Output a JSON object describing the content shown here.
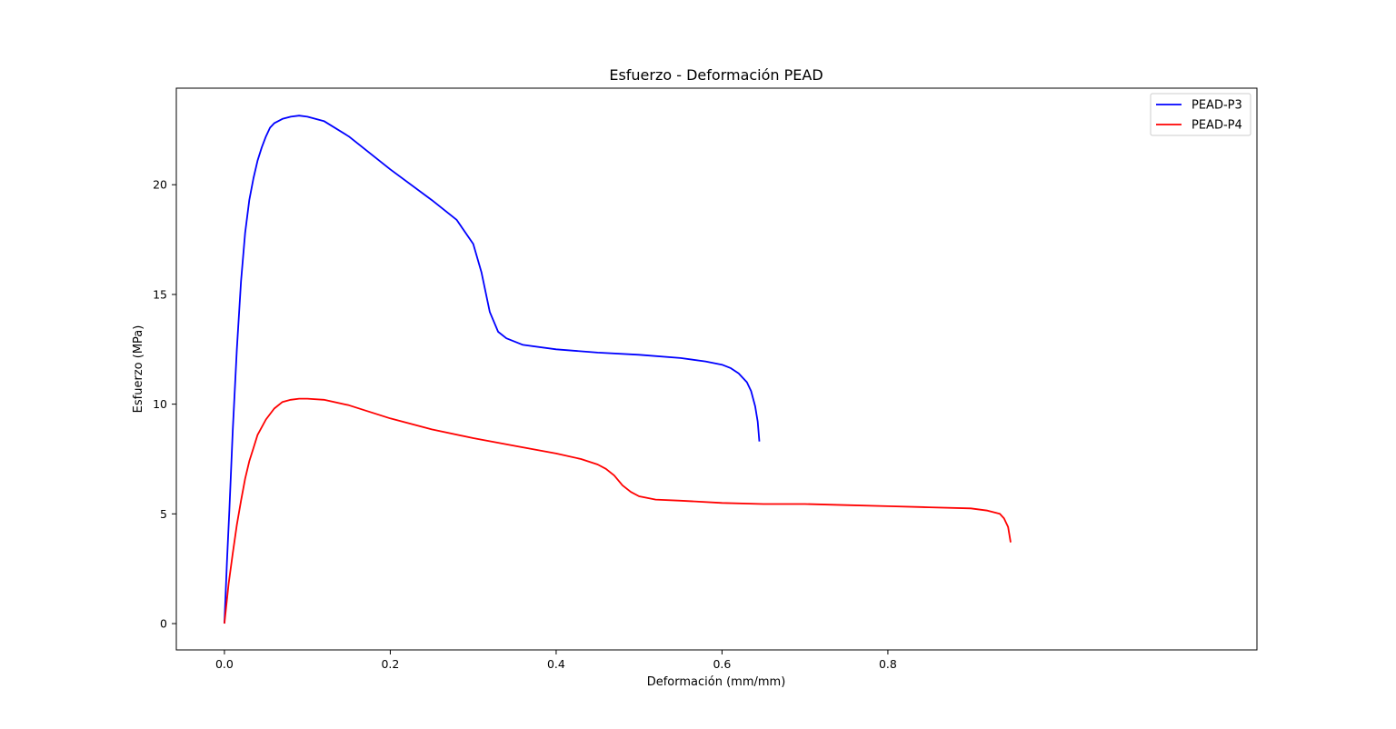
{
  "chart_data": {
    "type": "line",
    "title": "Esfuerzo - Deformación PEAD",
    "xlabel": "Deformación (mm/mm)",
    "ylabel": "Esfuerzo (MPa)",
    "xlim": [
      -0.058,
      1.245
    ],
    "ylim": [
      -1.2,
      24.4
    ],
    "xticks": [
      0.0,
      0.2,
      0.4,
      0.6,
      0.8
    ],
    "xtick_labels": [
      "0.0",
      "0.2",
      "0.4",
      "0.6",
      "0.8"
    ],
    "yticks": [
      0,
      5,
      10,
      15,
      20
    ],
    "ytick_labels": [
      "0",
      "5",
      "10",
      "15",
      "20"
    ],
    "grid": false,
    "legend_position": "top-right",
    "series": [
      {
        "name": "PEAD-P3",
        "color": "#0000ff",
        "x": [
          0.0,
          0.003,
          0.006,
          0.01,
          0.015,
          0.02,
          0.025,
          0.03,
          0.035,
          0.04,
          0.045,
          0.05,
          0.055,
          0.06,
          0.07,
          0.08,
          0.09,
          0.1,
          0.12,
          0.15,
          0.2,
          0.25,
          0.28,
          0.3,
          0.31,
          0.32,
          0.33,
          0.34,
          0.36,
          0.4,
          0.45,
          0.5,
          0.55,
          0.58,
          0.6,
          0.61,
          0.62,
          0.63,
          0.635,
          0.64,
          0.643,
          0.645
        ],
        "y": [
          0.0,
          2.8,
          5.2,
          8.8,
          12.5,
          15.6,
          17.8,
          19.3,
          20.3,
          21.1,
          21.7,
          22.2,
          22.6,
          22.8,
          23.0,
          23.1,
          23.15,
          23.1,
          22.9,
          22.2,
          20.7,
          19.3,
          18.4,
          17.3,
          16.0,
          14.2,
          13.3,
          13.0,
          12.7,
          12.5,
          12.35,
          12.25,
          12.1,
          11.95,
          11.8,
          11.65,
          11.4,
          11.0,
          10.6,
          9.9,
          9.2,
          8.3
        ]
      },
      {
        "name": "PEAD-P4",
        "color": "#ff0000",
        "x": [
          0.0,
          0.005,
          0.01,
          0.015,
          0.02,
          0.025,
          0.03,
          0.035,
          0.04,
          0.05,
          0.06,
          0.07,
          0.08,
          0.09,
          0.1,
          0.12,
          0.15,
          0.2,
          0.25,
          0.3,
          0.35,
          0.4,
          0.43,
          0.45,
          0.46,
          0.47,
          0.48,
          0.49,
          0.5,
          0.52,
          0.55,
          0.6,
          0.65,
          0.7,
          0.75,
          0.8,
          0.85,
          0.9,
          0.92,
          0.935,
          0.94,
          0.945,
          0.948
        ],
        "y": [
          0.0,
          1.8,
          3.2,
          4.5,
          5.6,
          6.6,
          7.4,
          8.0,
          8.6,
          9.3,
          9.8,
          10.1,
          10.2,
          10.25,
          10.25,
          10.2,
          9.95,
          9.35,
          8.85,
          8.45,
          8.1,
          7.75,
          7.5,
          7.25,
          7.05,
          6.75,
          6.3,
          6.0,
          5.8,
          5.65,
          5.6,
          5.5,
          5.45,
          5.45,
          5.4,
          5.35,
          5.3,
          5.25,
          5.15,
          5.0,
          4.8,
          4.4,
          3.7
        ]
      }
    ]
  }
}
